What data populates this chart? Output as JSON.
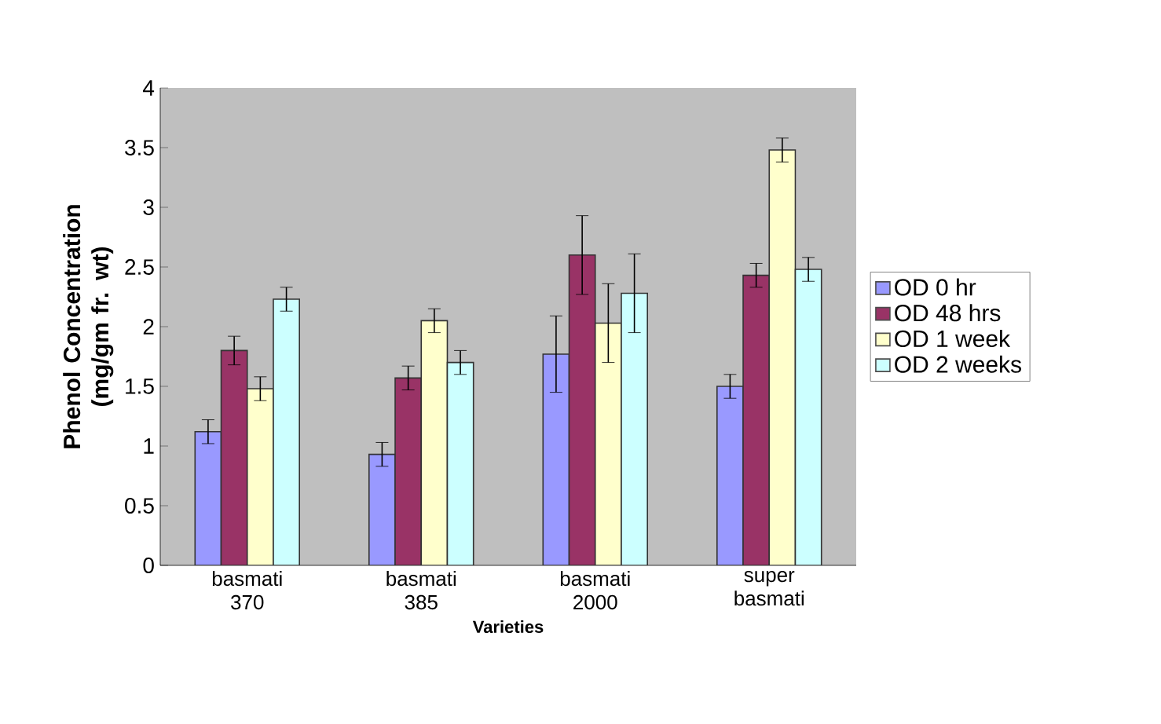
{
  "chart_data": {
    "type": "bar",
    "xlabel": "Varieties",
    "ylabel": "Phenol Concentration (mg/gm fr. wt)",
    "categories": [
      "basmati 370",
      "basmati 385",
      "basmati 2000",
      "super basmati"
    ],
    "ylim": [
      0,
      4
    ],
    "yticks": [
      0,
      0.5,
      1,
      1.5,
      2,
      2.5,
      3,
      3.5,
      4
    ],
    "grid": false,
    "legend": "right",
    "series": [
      {
        "name": "OD 0 hr",
        "color": "#9999ff",
        "values": [
          1.12,
          0.93,
          1.77,
          1.5
        ],
        "errors": [
          0.1,
          0.1,
          0.32,
          0.1
        ]
      },
      {
        "name": "OD 48 hrs",
        "color": "#993366",
        "values": [
          1.8,
          1.57,
          2.6,
          2.43
        ],
        "errors": [
          0.12,
          0.1,
          0.33,
          0.1
        ]
      },
      {
        "name": "OD 1 week",
        "color": "#ffffcc",
        "values": [
          1.48,
          2.05,
          2.03,
          3.48
        ],
        "errors": [
          0.1,
          0.1,
          0.33,
          0.1
        ]
      },
      {
        "name": "OD 2 weeks",
        "color": "#ccffff",
        "values": [
          2.23,
          1.7,
          2.28,
          2.48
        ],
        "errors": [
          0.1,
          0.1,
          0.33,
          0.1
        ]
      }
    ]
  }
}
